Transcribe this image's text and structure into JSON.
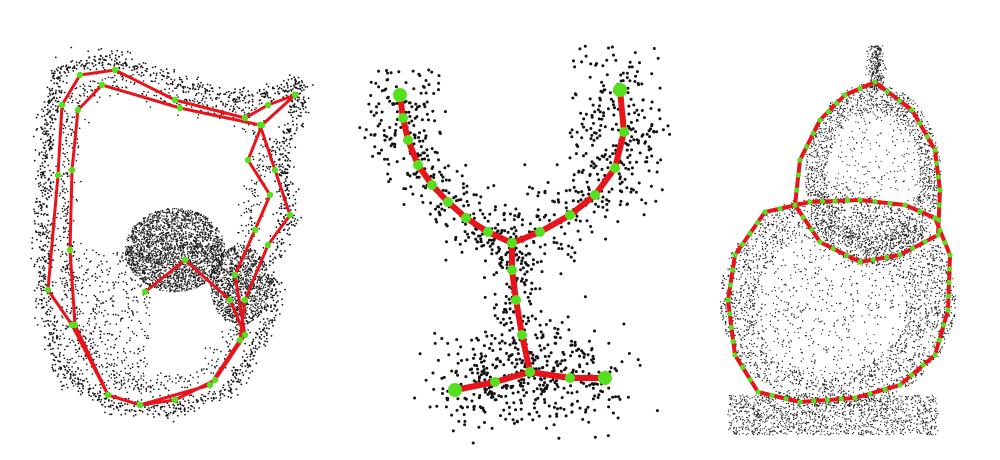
{
  "colors": {
    "background": "#ffffff",
    "points": "#111111",
    "skeleton_edge": "#e8141b",
    "skeleton_node": "#55e01e",
    "surface_shade": "#1a1a1a"
  },
  "panels": [
    {
      "name": "left-skeleton-panel",
      "kind": "loop-frame",
      "visible_text": ""
    },
    {
      "name": "middle-skeleton-panel",
      "kind": "y-branch",
      "visible_text": ""
    },
    {
      "name": "right-skeleton-panel",
      "kind": "double-loop",
      "visible_text": ""
    }
  ]
}
